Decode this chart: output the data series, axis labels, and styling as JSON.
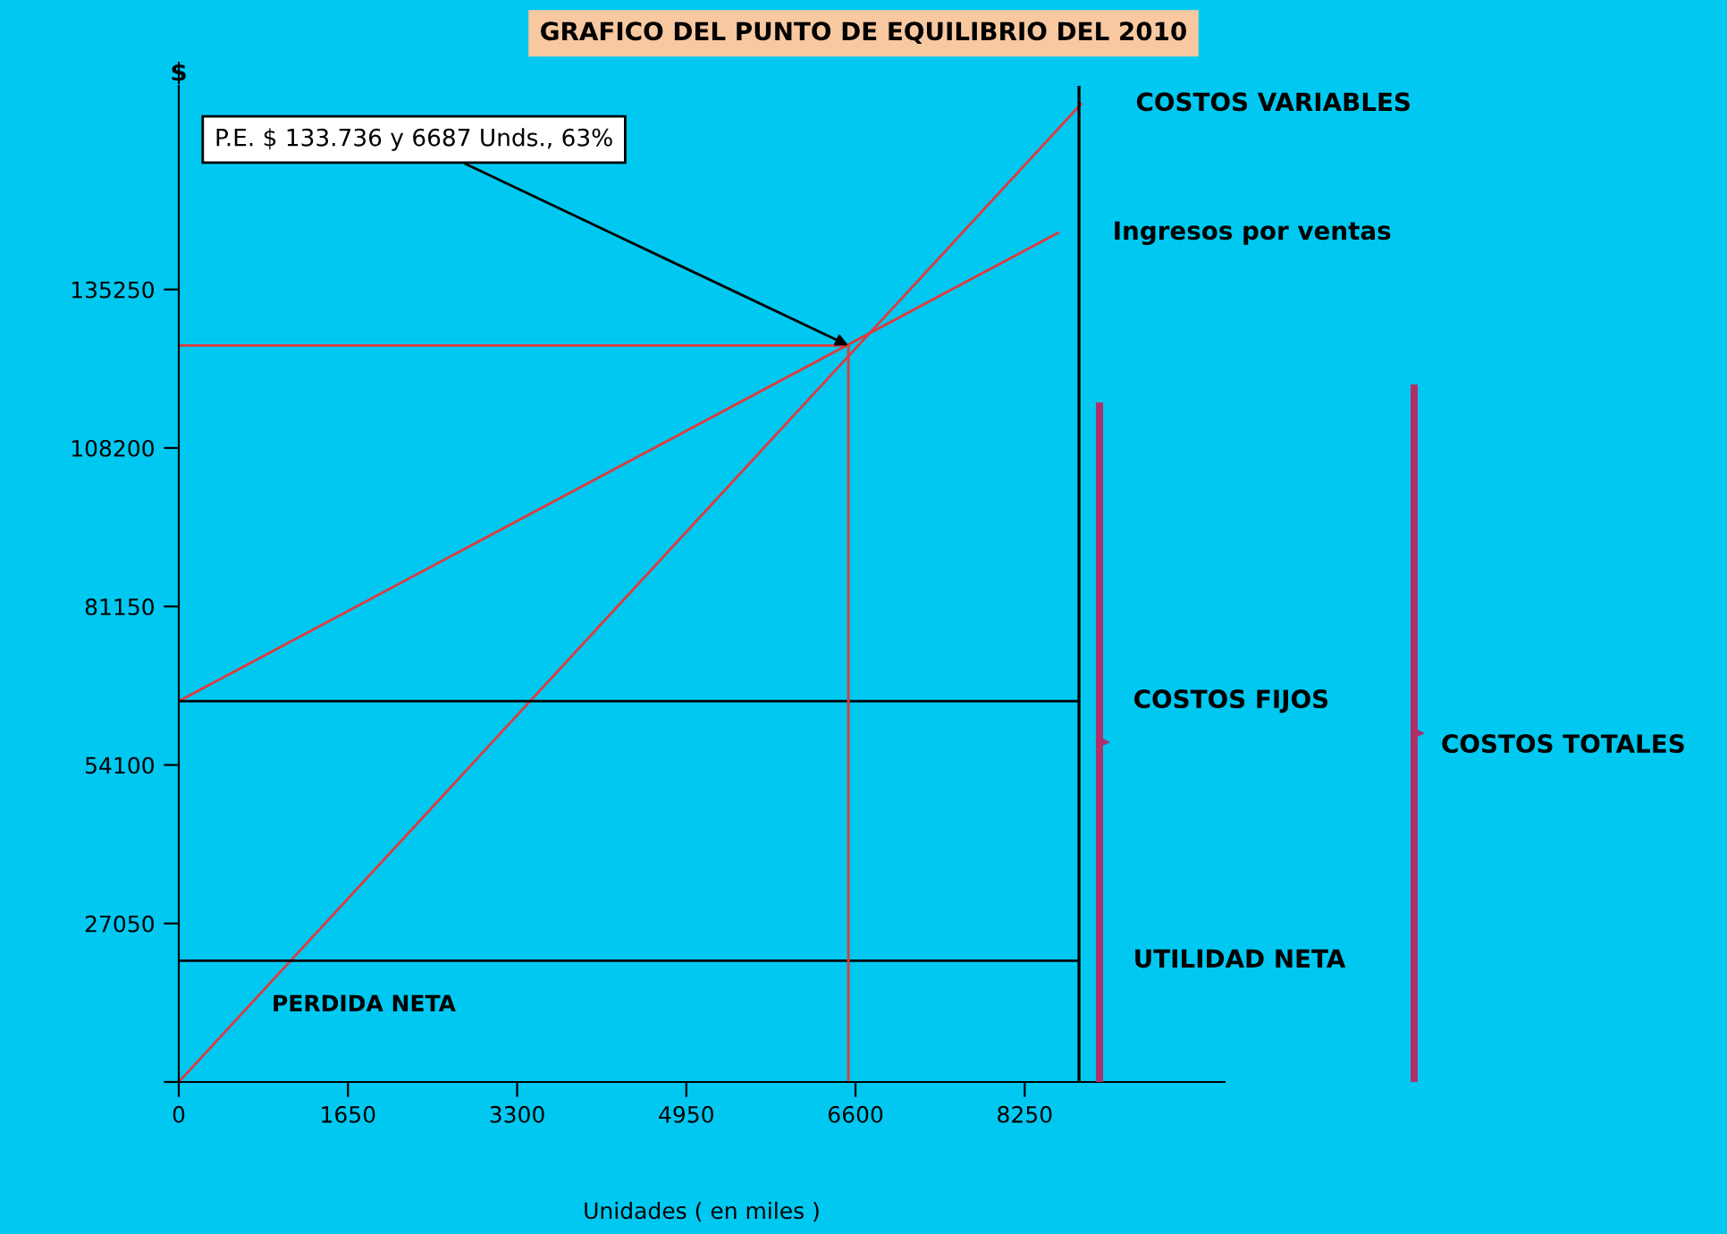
{
  "chart_data": {
    "type": "line",
    "title": "GRAFICO DEL PUNTO DE EQUILIBRIO DEL 2010",
    "xlabel": "Unidades ( en miles )",
    "ylabel": "$",
    "xlim": [
      0,
      10200
    ],
    "ylim": [
      0,
      170000
    ],
    "xticks": [
      0,
      1650,
      3300,
      4950,
      6600,
      8250
    ],
    "yticks": [
      {
        "value": 0,
        "label": null
      },
      27050,
      54100,
      81150,
      108200,
      135250
    ],
    "grid": false,
    "legend": false,
    "line_style": "solid",
    "series": [
      {
        "name": "COSTOS VARIABLES",
        "color": "#e03a3e",
        "x": [
          0,
          8800
        ],
        "values": [
          0,
          166900
        ]
      },
      {
        "name": "Ingresos por ventas",
        "color": "#e03a3e",
        "x": [
          0,
          8575
        ],
        "values": [
          65000,
          144900
        ]
      },
      {
        "name": "COSTOS FIJOS",
        "color": "#000000",
        "x": [
          0,
          8775
        ],
        "values": [
          65000,
          65000
        ]
      },
      {
        "name": "UTILIDAD NETA",
        "color": "#000000",
        "x": [
          0,
          8775
        ],
        "values": [
          20700,
          20700
        ]
      },
      {
        "color": "#e03a3e",
        "x": [
          0,
          6530,
          6530
        ],
        "values": [
          125700,
          125700,
          0
        ]
      }
    ],
    "ref_lines": [
      {
        "axis": "x",
        "value": 8780,
        "color": "#000000"
      }
    ],
    "annotations": [
      "P.E. $ 133.736 y 6687 Unds., 63%",
      "PERDIDA NETA",
      "COSTOS TOTALES"
    ]
  }
}
